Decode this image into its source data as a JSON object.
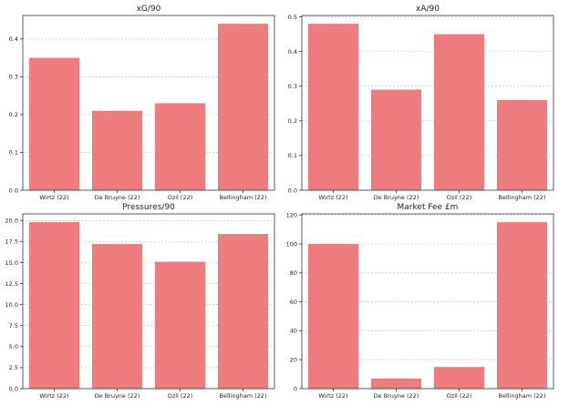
{
  "chart_data": [
    {
      "type": "bar",
      "title": "xG/90",
      "categories": [
        "Wirtz (22)",
        "De Bruyne (22)",
        "Ozil (22)",
        "Bellingham (22)"
      ],
      "values": [
        0.35,
        0.21,
        0.23,
        0.44
      ],
      "ylim": [
        0,
        0.462
      ],
      "yticks": [
        0,
        0.1,
        0.2,
        0.3,
        0.4
      ],
      "yticklabels": [
        "0.0",
        "0.1",
        "0.2",
        "0.3",
        "0.4"
      ],
      "grid": "y-dashed",
      "bar_color": "#ee7b7e"
    },
    {
      "type": "bar",
      "title": "xA/90",
      "categories": [
        "Wirtz (22)",
        "De Bruyne (22)",
        "Ozil (22)",
        "Bellingham (22)"
      ],
      "values": [
        0.48,
        0.29,
        0.45,
        0.26
      ],
      "ylim": [
        0,
        0.504
      ],
      "yticks": [
        0,
        0.1,
        0.2,
        0.3,
        0.4,
        0.5
      ],
      "yticklabels": [
        "0.0",
        "0.1",
        "0.2",
        "0.3",
        "0.4",
        "0.5"
      ],
      "grid": "y-dashed",
      "bar_color": "#ee7b7e"
    },
    {
      "type": "bar",
      "title": "Pressures/90",
      "categories": [
        "Wirtz (22)",
        "De Bruyne (22)",
        "Ozil (22)",
        "Bellingham (22)"
      ],
      "values": [
        19.8,
        17.2,
        15.1,
        18.4
      ],
      "ylim": [
        0,
        20.79
      ],
      "yticks": [
        0,
        2.5,
        5,
        7.5,
        10,
        12.5,
        15,
        17.5,
        20
      ],
      "yticklabels": [
        "0.0",
        "2.5",
        "5.0",
        "7.5",
        "10.0",
        "12.5",
        "15.0",
        "17.5",
        "20.0"
      ],
      "grid": "y-dashed",
      "bar_color": "#ee7b7e"
    },
    {
      "type": "bar",
      "title": "Market Fee £m",
      "categories": [
        "Wirtz (22)",
        "De Bruyne (22)",
        "Ozil (22)",
        "Bellingham (22)"
      ],
      "values": [
        100,
        7,
        15,
        115
      ],
      "ylim": [
        0,
        120.75
      ],
      "yticks": [
        0,
        20,
        40,
        60,
        80,
        100,
        120
      ],
      "yticklabels": [
        "0",
        "20",
        "40",
        "60",
        "80",
        "100",
        "120"
      ],
      "grid": "y-dashed",
      "bar_color": "#ee7b7e"
    }
  ]
}
